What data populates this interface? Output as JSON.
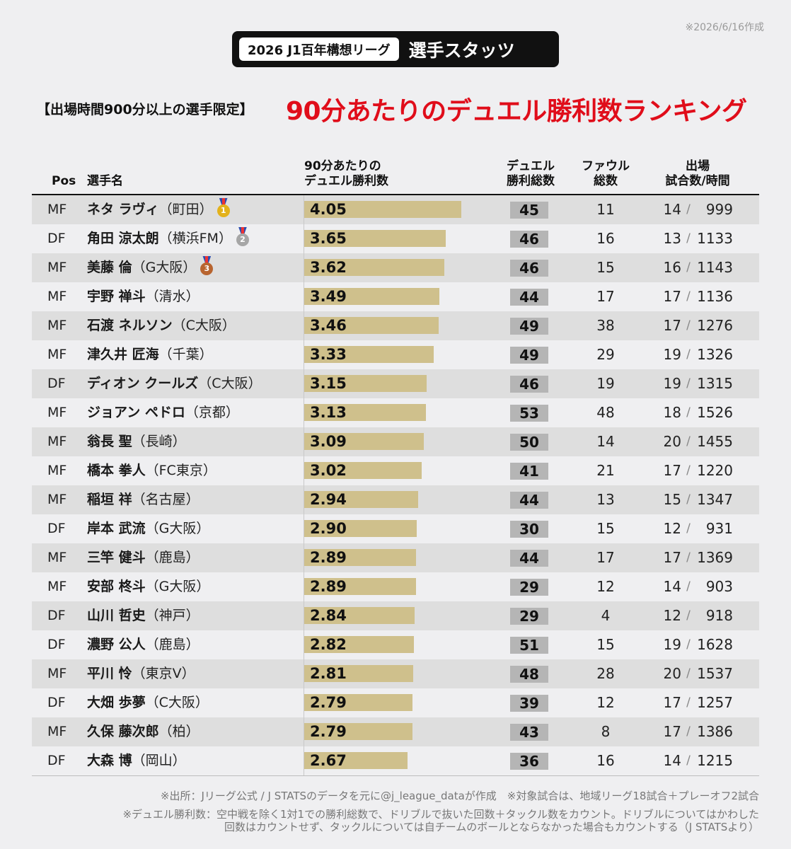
{
  "date_note": "※2026/6/16作成",
  "header": {
    "league": "2026 J1百年構想リーグ",
    "title": "選手スタッツ",
    "condition": "【出場時間900分以上の選手限定】",
    "ranking_title": "90分あたりのデュエル勝利数ランキング"
  },
  "columns": {
    "pos": "Pos",
    "name": "選手名",
    "rate_line1": "90分あたりの",
    "rate_line2": "デュエル勝利数",
    "duel_line1": "デュエル",
    "duel_line2": "勝利総数",
    "foul_line1": "ファウル",
    "foul_line2": "総数",
    "apps_line1": "出場",
    "apps_line2": "試合数/時間"
  },
  "colors": {
    "title_red": "#e00d1a",
    "bar": "#cfc08c",
    "gold": "#e3b21b",
    "silver": "#a6a6a6",
    "bronze": "#b8642f"
  },
  "chart_data": {
    "type": "bar",
    "title": "90分あたりのデュエル勝利数ランキング",
    "ylabel": "90分あたりのデュエル勝利数",
    "xlim": [
      0,
      4.05
    ],
    "categories": [
      "ネタ ラヴィ",
      "角田 涼太朗",
      "美藤 倫",
      "宇野 禅斗",
      "石渡 ネルソン",
      "津久井 匠海",
      "ディオン クールズ",
      "ジョアン ペドロ",
      "翁長 聖",
      "橋本 拳人",
      "稲垣 祥",
      "岸本 武流",
      "三竿 健斗",
      "安部 柊斗",
      "山川 哲史",
      "濃野 公人",
      "平川 怜",
      "大畑 歩夢",
      "久保 藤次郎",
      "大森 博"
    ],
    "values": [
      4.05,
      3.65,
      3.62,
      3.49,
      3.46,
      3.33,
      3.15,
      3.13,
      3.09,
      3.02,
      2.94,
      2.9,
      2.89,
      2.89,
      2.84,
      2.82,
      2.81,
      2.79,
      2.79,
      2.67
    ]
  },
  "players": [
    {
      "pos": "MF",
      "name": "ネタ ラヴィ",
      "team": "（町田）",
      "medal": "gold",
      "medal_no": "1",
      "rate": "4.05",
      "duels": "45",
      "fouls": "11",
      "apps": "14",
      "mins": "999"
    },
    {
      "pos": "DF",
      "name": "角田 涼太朗",
      "team": "（横浜FM）",
      "medal": "silver",
      "medal_no": "2",
      "rate": "3.65",
      "duels": "46",
      "fouls": "16",
      "apps": "13",
      "mins": "1133"
    },
    {
      "pos": "MF",
      "name": "美藤 倫",
      "team": "（G大阪）",
      "medal": "bronze",
      "medal_no": "3",
      "rate": "3.62",
      "duels": "46",
      "fouls": "15",
      "apps": "16",
      "mins": "1143"
    },
    {
      "pos": "MF",
      "name": "宇野 禅斗",
      "team": "（清水）",
      "medal": "",
      "medal_no": "",
      "rate": "3.49",
      "duels": "44",
      "fouls": "17",
      "apps": "17",
      "mins": "1136"
    },
    {
      "pos": "MF",
      "name": "石渡 ネルソン",
      "team": "（C大阪）",
      "medal": "",
      "medal_no": "",
      "rate": "3.46",
      "duels": "49",
      "fouls": "38",
      "apps": "17",
      "mins": "1276"
    },
    {
      "pos": "MF",
      "name": "津久井 匠海",
      "team": "（千葉）",
      "medal": "",
      "medal_no": "",
      "rate": "3.33",
      "duels": "49",
      "fouls": "29",
      "apps": "19",
      "mins": "1326"
    },
    {
      "pos": "DF",
      "name": "ディオン クールズ",
      "team": "（C大阪）",
      "medal": "",
      "medal_no": "",
      "rate": "3.15",
      "duels": "46",
      "fouls": "19",
      "apps": "19",
      "mins": "1315"
    },
    {
      "pos": "MF",
      "name": "ジョアン ペドロ",
      "team": "（京都）",
      "medal": "",
      "medal_no": "",
      "rate": "3.13",
      "duels": "53",
      "fouls": "48",
      "apps": "18",
      "mins": "1526"
    },
    {
      "pos": "MF",
      "name": "翁長 聖",
      "team": "（長崎）",
      "medal": "",
      "medal_no": "",
      "rate": "3.09",
      "duels": "50",
      "fouls": "14",
      "apps": "20",
      "mins": "1455"
    },
    {
      "pos": "MF",
      "name": "橋本 拳人",
      "team": "（FC東京）",
      "medal": "",
      "medal_no": "",
      "rate": "3.02",
      "duels": "41",
      "fouls": "21",
      "apps": "17",
      "mins": "1220"
    },
    {
      "pos": "MF",
      "name": "稲垣 祥",
      "team": "（名古屋）",
      "medal": "",
      "medal_no": "",
      "rate": "2.94",
      "duels": "44",
      "fouls": "13",
      "apps": "15",
      "mins": "1347"
    },
    {
      "pos": "DF",
      "name": "岸本 武流",
      "team": "（G大阪）",
      "medal": "",
      "medal_no": "",
      "rate": "2.90",
      "duels": "30",
      "fouls": "15",
      "apps": "12",
      "mins": "931"
    },
    {
      "pos": "MF",
      "name": "三竿 健斗",
      "team": "（鹿島）",
      "medal": "",
      "medal_no": "",
      "rate": "2.89",
      "duels": "44",
      "fouls": "17",
      "apps": "17",
      "mins": "1369"
    },
    {
      "pos": "MF",
      "name": "安部 柊斗",
      "team": "（G大阪）",
      "medal": "",
      "medal_no": "",
      "rate": "2.89",
      "duels": "29",
      "fouls": "12",
      "apps": "14",
      "mins": "903"
    },
    {
      "pos": "DF",
      "name": "山川 哲史",
      "team": "（神戸）",
      "medal": "",
      "medal_no": "",
      "rate": "2.84",
      "duels": "29",
      "fouls": "4",
      "apps": "12",
      "mins": "918"
    },
    {
      "pos": "DF",
      "name": "濃野 公人",
      "team": "（鹿島）",
      "medal": "",
      "medal_no": "",
      "rate": "2.82",
      "duels": "51",
      "fouls": "15",
      "apps": "19",
      "mins": "1628"
    },
    {
      "pos": "MF",
      "name": "平川 怜",
      "team": "（東京V）",
      "medal": "",
      "medal_no": "",
      "rate": "2.81",
      "duels": "48",
      "fouls": "28",
      "apps": "20",
      "mins": "1537"
    },
    {
      "pos": "DF",
      "name": "大畑 歩夢",
      "team": "（C大阪）",
      "medal": "",
      "medal_no": "",
      "rate": "2.79",
      "duels": "39",
      "fouls": "12",
      "apps": "17",
      "mins": "1257"
    },
    {
      "pos": "MF",
      "name": "久保 藤次郎",
      "team": "（柏）",
      "medal": "",
      "medal_no": "",
      "rate": "2.79",
      "duels": "43",
      "fouls": "8",
      "apps": "17",
      "mins": "1386"
    },
    {
      "pos": "DF",
      "name": "大森 博",
      "team": "（岡山）",
      "medal": "",
      "medal_no": "",
      "rate": "2.67",
      "duels": "36",
      "fouls": "16",
      "apps": "14",
      "mins": "1215"
    }
  ],
  "footnotes": {
    "source": "※出所：Jリーグ公式 / J STATSのデータを元に@j_league_dataが作成　※対象試合は、地域リーグ18試合＋プレーオフ2試合",
    "duel_def_1": "※デュエル勝利数：空中戦を除く1対1での勝利総数で、ドリブルで抜いた回数＋タックル数をカウント。ドリブルについてはかわした",
    "duel_def_2": "回数はカウントせず、タックルについては自チームのボールとならなかった場合もカウントする（J STATSより）"
  }
}
